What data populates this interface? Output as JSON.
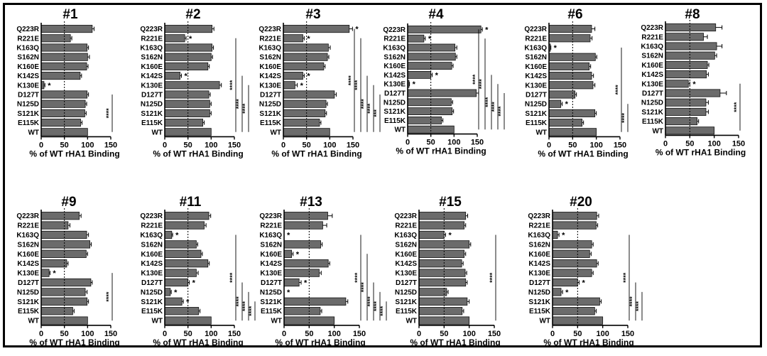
{
  "figure": {
    "colors": {
      "bar_fill": "#6b6b6b",
      "bar_stroke": "#111111",
      "axis": "#000000",
      "reference_line": "#000000"
    }
  },
  "chart_data": [
    {
      "type": "bar",
      "orientation": "horizontal",
      "title": "#1",
      "categories": [
        "Q223R",
        "R221E",
        "K163Q",
        "S162N",
        "K160E",
        "K142S",
        "K130E",
        "D127T",
        "N125D",
        "S121K",
        "E115K",
        "WT"
      ],
      "values": [
        110,
        63,
        99,
        100,
        98,
        84,
        6,
        99,
        95,
        94,
        85,
        100
      ],
      "errors": [
        4,
        3,
        3,
        4,
        3,
        3,
        2,
        3,
        3,
        3,
        3,
        0
      ],
      "stars": [
        "",
        "",
        "",
        "",
        "",
        "",
        "*",
        "",
        "",
        "",
        "",
        ""
      ],
      "brackets": [
        {
          "label": "****",
          "from": "D127T",
          "to": "WT"
        }
      ],
      "xlabel": "% of WT rHA1 Binding",
      "xlim": [
        0,
        150
      ],
      "xticks": [
        0,
        50,
        100,
        150
      ],
      "reference_line": 50
    },
    {
      "type": "bar",
      "orientation": "horizontal",
      "title": "#2",
      "categories": [
        "Q223R",
        "R221E",
        "K163Q",
        "S162N",
        "K160E",
        "K142S",
        "K130E",
        "D127T",
        "N125D",
        "S121K",
        "E115K",
        "WT"
      ],
      "values": [
        102,
        43,
        102,
        100,
        93,
        33,
        118,
        95,
        97,
        97,
        82,
        100
      ],
      "errors": [
        4,
        3,
        3,
        3,
        3,
        3,
        4,
        3,
        3,
        3,
        3,
        0
      ],
      "stars": [
        "",
        "*",
        "",
        "",
        "",
        "*",
        "",
        "",
        "",
        "",
        "",
        ""
      ],
      "brackets": [
        {
          "label": "****",
          "from": "R221E",
          "to": "WT"
        },
        {
          "label": "****",
          "from": "K142S",
          "to": "WT"
        },
        {
          "label": "****",
          "from": "K130E",
          "to": "WT"
        }
      ],
      "xlabel": "% of WT rHA1 Binding",
      "xlim": [
        0,
        150
      ],
      "xticks": [
        0,
        50,
        100,
        150
      ],
      "reference_line": 50
    },
    {
      "type": "bar",
      "orientation": "horizontal",
      "title": "#3",
      "categories": [
        "Q223R",
        "R221E",
        "K163Q",
        "S162N",
        "K160E",
        "K142S",
        "K130E",
        "D127T",
        "N125D",
        "S121K",
        "E115K",
        "WT"
      ],
      "values": [
        142,
        42,
        97,
        95,
        87,
        42,
        25,
        110,
        92,
        90,
        78,
        100
      ],
      "errors": [
        7,
        3,
        4,
        3,
        3,
        3,
        5,
        4,
        3,
        3,
        3,
        0
      ],
      "stars": [
        "*",
        "*",
        "",
        "",
        "",
        "*",
        "*",
        "",
        "",
        "",
        "",
        ""
      ],
      "brackets": [
        {
          "label": "****",
          "from": "Q223R",
          "to": "WT"
        },
        {
          "label": "****",
          "from": "R221E",
          "to": "WT"
        },
        {
          "label": "****",
          "from": "K142S",
          "to": "WT"
        },
        {
          "label": "****",
          "from": "K130E",
          "to": "WT"
        },
        {
          "label": "***",
          "from": "D127T",
          "to": "WT"
        }
      ],
      "xlabel": "% of WT rHA1 Binding",
      "xlim": [
        0,
        150
      ],
      "xticks": [
        0,
        50,
        100,
        150
      ],
      "reference_line": 50
    },
    {
      "type": "bar",
      "orientation": "horizontal",
      "title": "#4",
      "categories": [
        "Q223R",
        "R221E",
        "K163Q",
        "S162N",
        "K160E",
        "K142S",
        "K130E",
        "D127T",
        "N125D",
        "S121K",
        "E115K",
        "WT"
      ],
      "values": [
        158,
        35,
        102,
        103,
        95,
        50,
        3,
        148,
        94,
        96,
        73,
        100
      ],
      "errors": [
        3,
        3,
        4,
        3,
        3,
        3,
        1,
        5,
        3,
        3,
        3,
        0
      ],
      "stars": [
        "*",
        "*",
        "",
        "",
        "",
        "*",
        "*",
        "",
        "",
        "",
        "",
        ""
      ],
      "brackets": [
        {
          "label": "****",
          "from": "Q223R",
          "to": "WT"
        },
        {
          "label": "****",
          "from": "R221E",
          "to": "WT"
        },
        {
          "label": "****",
          "from": "K142S",
          "to": "WT"
        },
        {
          "label": "****",
          "from": "K130E",
          "to": "WT"
        },
        {
          "label": "****",
          "from": "D127T",
          "to": "WT"
        }
      ],
      "xlabel": "% of WT rHA1 Binding",
      "xlim": [
        0,
        150
      ],
      "xticks": [
        0,
        50,
        100,
        150
      ],
      "reference_line": 50
    },
    {
      "type": "bar",
      "orientation": "horizontal",
      "title": "#6",
      "categories": [
        "Q223R",
        "R221E",
        "K163Q",
        "S162N",
        "K160E",
        "K142S",
        "K130E",
        "D127T",
        "N125D",
        "S121K",
        "E115K",
        "WT"
      ],
      "values": [
        90,
        87,
        3,
        98,
        85,
        90,
        93,
        55,
        25,
        97,
        70,
        100
      ],
      "errors": [
        7,
        4,
        1,
        3,
        3,
        4,
        4,
        3,
        3,
        3,
        3,
        0
      ],
      "stars": [
        "",
        "",
        "*",
        "",
        "",
        "",
        "",
        "",
        "*",
        "",
        "",
        ""
      ],
      "brackets": [
        {
          "label": "****",
          "from": "K163Q",
          "to": "WT"
        },
        {
          "label": "****",
          "from": "N125D",
          "to": "WT"
        }
      ],
      "xlabel": "% of WT rHA1 Binding",
      "xlim": [
        0,
        150
      ],
      "xticks": [
        0,
        50,
        100,
        150
      ],
      "reference_line": 50
    },
    {
      "type": "bar",
      "orientation": "horizontal",
      "title": "#8",
      "categories": [
        "Q223R",
        "R221E",
        "K163Q",
        "S162N",
        "K160E",
        "K142S",
        "K130E",
        "D127T",
        "N125D",
        "S121K",
        "E115K",
        "WT"
      ],
      "values": [
        103,
        78,
        105,
        101,
        86,
        84,
        47,
        112,
        83,
        83,
        65,
        100
      ],
      "errors": [
        13,
        8,
        11,
        4,
        3,
        4,
        3,
        13,
        5,
        5,
        3,
        0
      ],
      "stars": [
        "",
        "",
        "",
        "",
        "",
        "",
        "*",
        "",
        "",
        "",
        "",
        ""
      ],
      "brackets": [
        {
          "label": "****",
          "from": "K130E",
          "to": "WT"
        }
      ],
      "xlabel": "% of WT rHA1 Binding",
      "xlim": [
        0,
        150
      ],
      "xticks": [
        0,
        50,
        100,
        150
      ],
      "reference_line": 50
    },
    {
      "type": "bar",
      "orientation": "horizontal",
      "title": "#9",
      "categories": [
        "Q223R",
        "R221E",
        "K163Q",
        "S162N",
        "K160E",
        "K142S",
        "K130E",
        "D127T",
        "N125D",
        "S121K",
        "E115K",
        "WT"
      ],
      "values": [
        82,
        58,
        98,
        105,
        97,
        55,
        17,
        107,
        95,
        99,
        68,
        100
      ],
      "errors": [
        4,
        4,
        4,
        3,
        3,
        3,
        2,
        3,
        4,
        3,
        3,
        0
      ],
      "stars": [
        "",
        "",
        "",
        "",
        "",
        "",
        "*",
        "",
        "",
        "",
        "",
        ""
      ],
      "brackets": [
        {
          "label": "****",
          "from": "K130E",
          "to": "WT"
        }
      ],
      "xlabel": "% of WT rHA1 Binding",
      "xlim": [
        0,
        150
      ],
      "xticks": [
        0,
        50,
        100,
        150
      ],
      "reference_line": 50
    },
    {
      "type": "bar",
      "orientation": "horizontal",
      "title": "#11",
      "categories": [
        "Q223R",
        "R221E",
        "K163Q",
        "S162N",
        "K160E",
        "K142S",
        "K130E",
        "D127T",
        "N125D",
        "S121K",
        "E115K",
        "WT"
      ],
      "values": [
        95,
        85,
        15,
        68,
        78,
        93,
        68,
        50,
        12,
        37,
        73,
        100
      ],
      "errors": [
        4,
        4,
        2,
        3,
        3,
        3,
        4,
        3,
        2,
        3,
        3,
        0
      ],
      "stars": [
        "",
        "",
        "*",
        "",
        "",
        "",
        "",
        "*",
        "*",
        "*",
        "",
        ""
      ],
      "brackets": [
        {
          "label": "****",
          "from": "K163Q",
          "to": "WT"
        },
        {
          "label": "****",
          "from": "D127T",
          "to": "WT"
        },
        {
          "label": "****",
          "from": "N125D",
          "to": "WT"
        },
        {
          "label": "****",
          "from": "S121K",
          "to": "WT"
        }
      ],
      "xlabel": "% of WT rHA1 Binding",
      "xlim": [
        0,
        150
      ],
      "xticks": [
        0,
        50,
        100,
        150
      ],
      "reference_line": 50
    },
    {
      "type": "bar",
      "orientation": "horizontal",
      "title": "#13",
      "categories": [
        "Q223R",
        "R221E",
        "K163Q",
        "S162N",
        "K160E",
        "K142S",
        "K130E",
        "D127T",
        "N125D",
        "S121K",
        "E115K",
        "WT"
      ],
      "values": [
        87,
        77,
        0,
        73,
        15,
        88,
        70,
        30,
        0,
        123,
        72,
        100
      ],
      "errors": [
        9,
        8,
        0,
        3,
        3,
        3,
        4,
        4,
        0,
        4,
        3,
        0
      ],
      "stars": [
        "",
        "",
        "*",
        "",
        "*",
        "",
        "",
        "*",
        "*",
        "",
        "",
        ""
      ],
      "brackets": [
        {
          "label": "****",
          "from": "K163Q",
          "to": "WT"
        },
        {
          "label": "****",
          "from": "K160E",
          "to": "WT"
        },
        {
          "label": "****",
          "from": "D127T",
          "to": "WT"
        },
        {
          "label": "****",
          "from": "N125D",
          "to": "WT"
        },
        {
          "label": "****",
          "from": "S121K",
          "to": "WT"
        }
      ],
      "xlabel": "% of WT rHA1 Binding",
      "xlim": [
        0,
        150
      ],
      "xticks": [
        0,
        50,
        100,
        150
      ],
      "reference_line": 50
    },
    {
      "type": "bar",
      "orientation": "horizontal",
      "title": "#15",
      "categories": [
        "Q223R",
        "R221E",
        "K163Q",
        "S162N",
        "K160E",
        "K142S",
        "K130E",
        "D127T",
        "N125D",
        "S121K",
        "E115K",
        "WT"
      ],
      "values": [
        93,
        90,
        50,
        100,
        90,
        85,
        92,
        93,
        55,
        96,
        86,
        100
      ],
      "errors": [
        4,
        3,
        3,
        3,
        3,
        3,
        3,
        3,
        3,
        4,
        3,
        0
      ],
      "stars": [
        "",
        "",
        "*",
        "",
        "",
        "",
        "",
        "",
        "",
        "",
        "",
        ""
      ],
      "brackets": [
        {
          "label": "****",
          "from": "K163Q",
          "to": "WT"
        }
      ],
      "xlabel": "% of WT rHA1 Binding",
      "xlim": [
        0,
        150
      ],
      "xticks": [
        0,
        50,
        100,
        150
      ],
      "reference_line": 50
    },
    {
      "type": "bar",
      "orientation": "horizontal",
      "title": "#20",
      "categories": [
        "Q223R",
        "R221E",
        "K163Q",
        "S162N",
        "K160E",
        "K142S",
        "K130E",
        "D127T",
        "N125D",
        "S121K",
        "E115K",
        "WT"
      ],
      "values": [
        88,
        87,
        10,
        78,
        74,
        88,
        78,
        50,
        17,
        94,
        84,
        100
      ],
      "errors": [
        4,
        3,
        3,
        3,
        3,
        3,
        3,
        3,
        3,
        3,
        3,
        0
      ],
      "stars": [
        "",
        "",
        "*",
        "",
        "",
        "",
        "",
        "*",
        "*",
        "",
        "",
        ""
      ],
      "brackets": [
        {
          "label": "****",
          "from": "K163Q",
          "to": "WT"
        },
        {
          "label": "****",
          "from": "D127T",
          "to": "WT"
        },
        {
          "label": "****",
          "from": "N125D",
          "to": "WT"
        }
      ],
      "xlabel": "% of WT rHA1 Binding",
      "xlim": [
        0,
        150
      ],
      "xticks": [
        0,
        50,
        100,
        150
      ],
      "reference_line": 50
    }
  ]
}
